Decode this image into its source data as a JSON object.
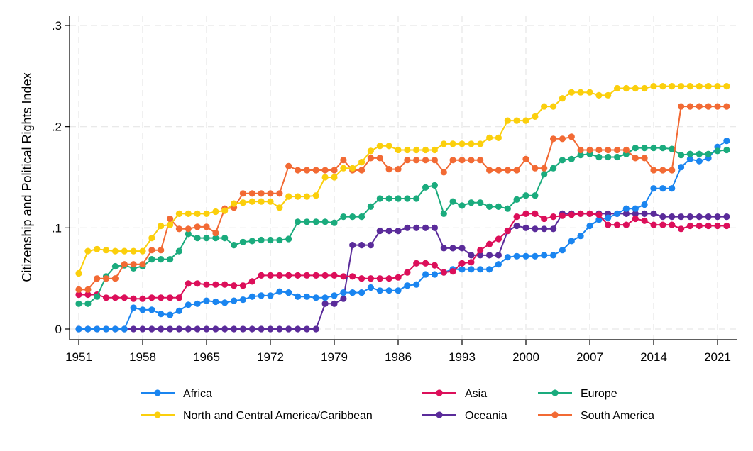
{
  "chart_data": {
    "type": "line",
    "title": "",
    "xlabel": "",
    "ylabel": "Citizenship and Political Rights Index",
    "xlim": [
      1950,
      2023
    ],
    "ylim": [
      0,
      0.3
    ],
    "x_ticks": [
      1951,
      1958,
      1965,
      1972,
      1979,
      1986,
      1993,
      2000,
      2007,
      2014,
      2021
    ],
    "x_tick_labels": [
      "1951",
      "1958",
      "1965",
      "1972",
      "1979",
      "1986",
      "1993",
      "2000",
      "2007",
      "2014",
      "2021"
    ],
    "y_ticks": [
      0,
      0.1,
      0.2,
      0.3
    ],
    "y_tick_labels": [
      "0",
      ".1",
      ".2",
      ".3"
    ],
    "grid": true,
    "legend_position": "bottom",
    "x": [
      1951,
      1952,
      1953,
      1954,
      1955,
      1956,
      1957,
      1958,
      1959,
      1960,
      1961,
      1962,
      1963,
      1964,
      1965,
      1966,
      1967,
      1968,
      1969,
      1970,
      1971,
      1972,
      1973,
      1974,
      1975,
      1976,
      1977,
      1978,
      1979,
      1980,
      1981,
      1982,
      1983,
      1984,
      1985,
      1986,
      1987,
      1988,
      1989,
      1990,
      1991,
      1992,
      1993,
      1994,
      1995,
      1996,
      1997,
      1998,
      1999,
      2000,
      2001,
      2002,
      2003,
      2004,
      2005,
      2006,
      2007,
      2008,
      2009,
      2010,
      2011,
      2012,
      2013,
      2014,
      2015,
      2016,
      2017,
      2018,
      2019,
      2020,
      2021,
      2022
    ],
    "series": [
      {
        "name": "Africa",
        "color": "#1a85f0",
        "values": [
          0,
          0,
          0,
          0,
          0,
          0,
          0.021,
          0.019,
          0.019,
          0.015,
          0.014,
          0.018,
          0.024,
          0.025,
          0.028,
          0.027,
          0.026,
          0.028,
          0.029,
          0.032,
          0.033,
          0.033,
          0.037,
          0.036,
          0.032,
          0.032,
          0.031,
          0.031,
          0.033,
          0.036,
          0.036,
          0.036,
          0.041,
          0.038,
          0.038,
          0.038,
          0.043,
          0.044,
          0.054,
          0.054,
          0.056,
          0.059,
          0.059,
          0.059,
          0.059,
          0.059,
          0.064,
          0.071,
          0.072,
          0.072,
          0.072,
          0.073,
          0.073,
          0.078,
          0.087,
          0.092,
          0.102,
          0.108,
          0.11,
          0.114,
          0.119,
          0.119,
          0.123,
          0.139,
          0.139,
          0.139,
          0.16,
          0.168,
          0.166,
          0.169,
          0.18,
          0.186
        ]
      },
      {
        "name": "Asia",
        "color": "#dc0f5a",
        "values": [
          0.034,
          0.034,
          0.034,
          0.031,
          0.031,
          0.031,
          0.03,
          0.03,
          0.031,
          0.031,
          0.031,
          0.031,
          0.045,
          0.045,
          0.044,
          0.044,
          0.044,
          0.043,
          0.043,
          0.047,
          0.053,
          0.053,
          0.053,
          0.053,
          0.053,
          0.053,
          0.053,
          0.053,
          0.053,
          0.052,
          0.052,
          0.05,
          0.05,
          0.05,
          0.05,
          0.051,
          0.056,
          0.065,
          0.065,
          0.063,
          0.056,
          0.057,
          0.065,
          0.066,
          0.078,
          0.084,
          0.089,
          0.097,
          0.111,
          0.114,
          0.114,
          0.109,
          0.111,
          0.112,
          0.113,
          0.114,
          0.114,
          0.113,
          0.103,
          0.103,
          0.103,
          0.109,
          0.107,
          0.103,
          0.103,
          0.103,
          0.099,
          0.102,
          0.102,
          0.102,
          0.102,
          0.102
        ]
      },
      {
        "name": "Europe",
        "color": "#1aab7d",
        "values": [
          0.025,
          0.025,
          0.032,
          0.052,
          0.062,
          0.063,
          0.06,
          0.062,
          0.069,
          0.069,
          0.069,
          0.077,
          0.094,
          0.09,
          0.09,
          0.09,
          0.09,
          0.083,
          0.086,
          0.087,
          0.088,
          0.088,
          0.088,
          0.089,
          0.106,
          0.106,
          0.106,
          0.106,
          0.105,
          0.111,
          0.111,
          0.111,
          0.121,
          0.129,
          0.129,
          0.129,
          0.129,
          0.129,
          0.14,
          0.142,
          0.114,
          0.126,
          0.122,
          0.125,
          0.125,
          0.121,
          0.121,
          0.119,
          0.128,
          0.132,
          0.132,
          0.153,
          0.159,
          0.167,
          0.168,
          0.172,
          0.173,
          0.17,
          0.17,
          0.17,
          0.173,
          0.179,
          0.179,
          0.179,
          0.179,
          0.178,
          0.172,
          0.173,
          0.173,
          0.173,
          0.176,
          0.177
        ]
      },
      {
        "name": "North and Central America/Caribbean",
        "color": "#fbcf0c",
        "values": [
          0.055,
          0.077,
          0.079,
          0.078,
          0.077,
          0.077,
          0.077,
          0.077,
          0.09,
          0.102,
          0.103,
          0.114,
          0.114,
          0.114,
          0.114,
          0.116,
          0.117,
          0.124,
          0.125,
          0.126,
          0.126,
          0.126,
          0.12,
          0.131,
          0.131,
          0.131,
          0.132,
          0.15,
          0.15,
          0.159,
          0.159,
          0.165,
          0.176,
          0.181,
          0.181,
          0.177,
          0.177,
          0.177,
          0.177,
          0.177,
          0.183,
          0.183,
          0.183,
          0.183,
          0.183,
          0.189,
          0.189,
          0.206,
          0.206,
          0.206,
          0.21,
          0.22,
          0.22,
          0.228,
          0.234,
          0.234,
          0.234,
          0.231,
          0.231,
          0.238,
          0.238,
          0.238,
          0.238,
          0.24,
          0.24,
          0.24,
          0.24,
          0.24,
          0.24,
          0.24,
          0.24,
          0.24
        ]
      },
      {
        "name": "Oceania",
        "color": "#5a2b9a",
        "values": [
          0,
          0,
          0,
          0,
          0,
          0,
          0,
          0,
          0,
          0,
          0,
          0,
          0,
          0,
          0,
          0,
          0,
          0,
          0,
          0,
          0,
          0,
          0,
          0,
          0,
          0,
          0,
          0.025,
          0.025,
          0.03,
          0.083,
          0.083,
          0.083,
          0.097,
          0.097,
          0.097,
          0.1,
          0.1,
          0.1,
          0.1,
          0.08,
          0.08,
          0.08,
          0.073,
          0.073,
          0.073,
          0.073,
          0.097,
          0.102,
          0.1,
          0.099,
          0.099,
          0.099,
          0.114,
          0.114,
          0.114,
          0.114,
          0.114,
          0.114,
          0.114,
          0.114,
          0.114,
          0.114,
          0.114,
          0.111,
          0.111,
          0.111,
          0.111,
          0.111,
          0.111,
          0.111,
          0.111
        ]
      },
      {
        "name": "South America",
        "color": "#f26a34",
        "values": [
          0.039,
          0.039,
          0.05,
          0.05,
          0.05,
          0.064,
          0.064,
          0.064,
          0.078,
          0.078,
          0.109,
          0.099,
          0.099,
          0.101,
          0.101,
          0.095,
          0.119,
          0.12,
          0.134,
          0.134,
          0.134,
          0.134,
          0.134,
          0.161,
          0.157,
          0.157,
          0.157,
          0.157,
          0.157,
          0.167,
          0.157,
          0.157,
          0.169,
          0.169,
          0.158,
          0.158,
          0.167,
          0.167,
          0.167,
          0.167,
          0.155,
          0.167,
          0.167,
          0.167,
          0.167,
          0.157,
          0.157,
          0.157,
          0.157,
          0.168,
          0.159,
          0.159,
          0.188,
          0.188,
          0.19,
          0.177,
          0.177,
          0.177,
          0.177,
          0.177,
          0.177,
          0.169,
          0.169,
          0.157,
          0.157,
          0.157,
          0.22,
          0.22,
          0.22,
          0.22,
          0.22,
          0.22
        ]
      }
    ],
    "legend_order": [
      "Africa",
      "Asia",
      "Europe",
      "North and Central America/Caribbean",
      "Oceania",
      "South America"
    ]
  }
}
